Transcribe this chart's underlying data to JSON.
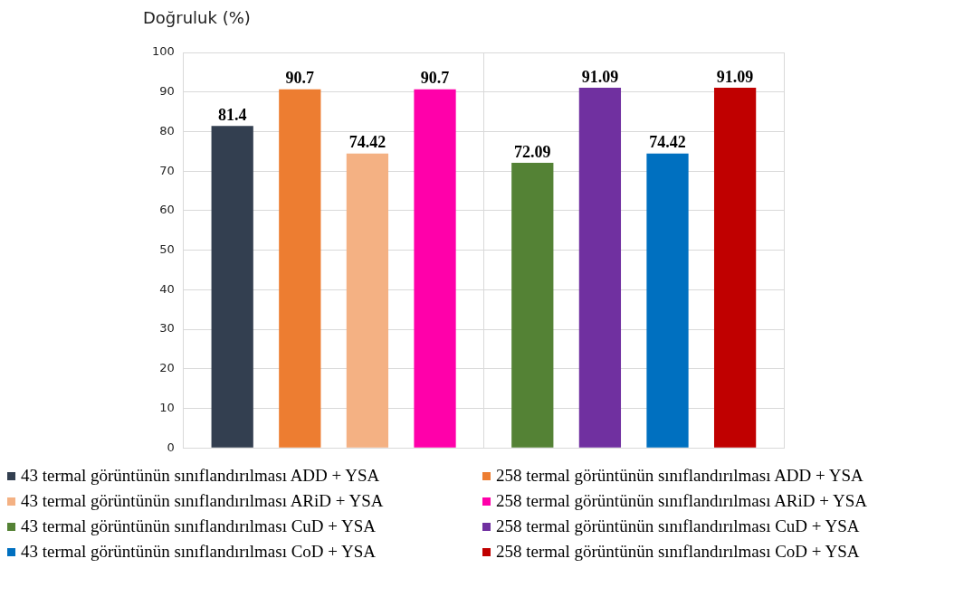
{
  "chart_data": {
    "type": "bar",
    "ylabel": "Doğruluk (%)",
    "categories": [
      null,
      null
    ],
    "series": [
      {
        "name": "43 termal görüntünün sınıflandırılması ADD + YSA",
        "color": "#333f50",
        "values": [
          81.4,
          null
        ]
      },
      {
        "name": "258 termal görüntünün sınıflandırılması ADD + YSA",
        "color": "#ed7d31",
        "values": [
          90.7,
          null
        ]
      },
      {
        "name": "43 termal görüntünün sınıflandırılması ARiD + YSA",
        "color": "#f4b183",
        "values": [
          74.42,
          null
        ]
      },
      {
        "name": "258 termal görüntünün sınıflandırılması ARiD + YSA",
        "color": "#ff00aa",
        "values": [
          90.7,
          null
        ]
      },
      {
        "name": "43 termal görüntünün sınıflandırılması CuD + YSA",
        "color": "#548235",
        "values": [
          null,
          72.09
        ]
      },
      {
        "name": "258 termal görüntünün sınıflandırılması CuD + YSA",
        "color": "#7030a0",
        "values": [
          null,
          91.09
        ]
      },
      {
        "name": "43 termal görüntünün sınıflandırılması CoD + YSA",
        "color": "#0070c0",
        "values": [
          null,
          74.42
        ]
      },
      {
        "name": "258 termal görüntünün sınıflandırılması CoD + YSA",
        "color": "#c00000",
        "values": [
          null,
          91.09
        ]
      }
    ],
    "ylim": [
      0,
      100
    ],
    "yticks": [
      0,
      10,
      20,
      30,
      40,
      50,
      60,
      70,
      80,
      90,
      100
    ],
    "grid": true,
    "data_labels": true,
    "legend": "bottom"
  }
}
